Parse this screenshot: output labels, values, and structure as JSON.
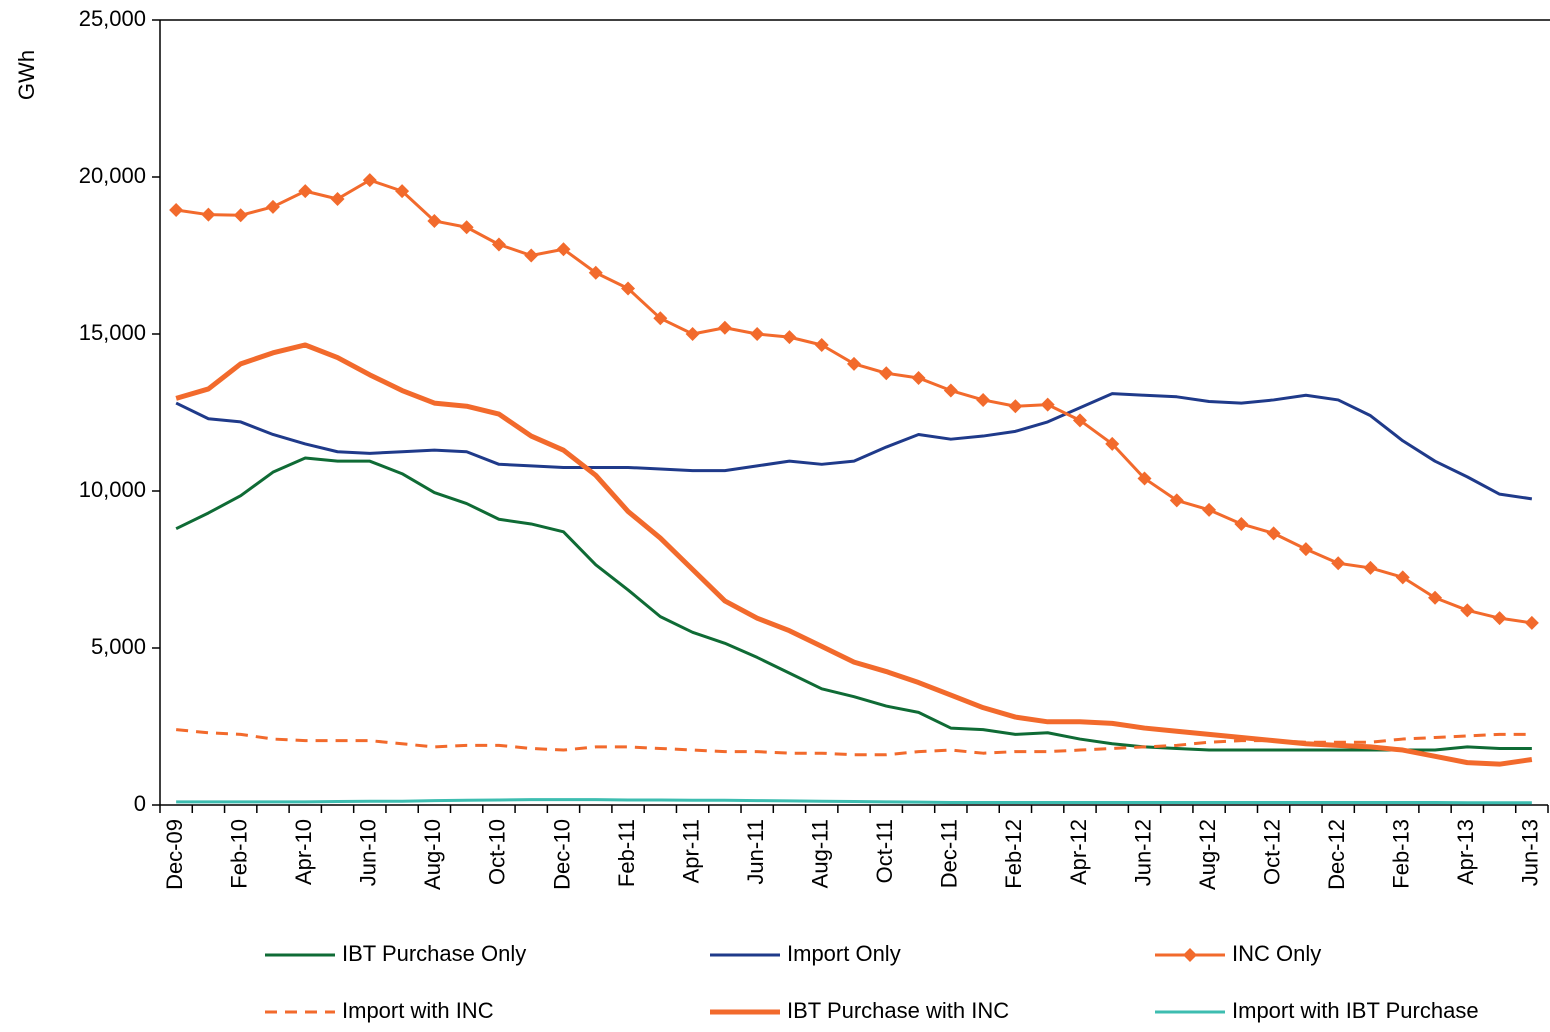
{
  "chart_data": {
    "type": "line",
    "y_label": "GWh",
    "categories": [
      "Dec-09",
      null,
      "Feb-10",
      null,
      "Apr-10",
      null,
      "Jun-10",
      null,
      "Aug-10",
      null,
      "Oct-10",
      null,
      "Dec-10",
      null,
      "Feb-11",
      null,
      "Apr-11",
      null,
      "Jun-11",
      null,
      "Aug-11",
      null,
      "Oct-11",
      null,
      "Dec-11",
      null,
      "Feb-12",
      null,
      "Apr-12",
      null,
      "Jun-12",
      null,
      "Aug-12",
      null,
      "Oct-12",
      null,
      "Dec-12",
      null,
      "Feb-13",
      null,
      "Apr-13",
      null,
      "Jun-13"
    ],
    "ylim": [
      0,
      25000
    ],
    "yticks": [
      0,
      {
        "value": 5000,
        "label": "5,000"
      },
      {
        "value": 10000,
        "label": "10,000"
      },
      {
        "value": 15000,
        "label": "15,000"
      },
      {
        "value": 20000,
        "label": "20,000"
      },
      {
        "value": 25000,
        "label": "25,000"
      }
    ],
    "series": [
      {
        "name": "IBT Purchase Only",
        "color": "#0f6b35",
        "line_width": 3,
        "values": [
          8800,
          9300,
          9850,
          10600,
          11050,
          10950,
          10950,
          10550,
          9950,
          9600,
          9100,
          8950,
          8700,
          7650,
          6850,
          6000,
          5500,
          5150,
          4700,
          4200,
          3700,
          3450,
          3150,
          2950,
          2450,
          2400,
          2250,
          2300,
          2100,
          1950,
          1850,
          1800,
          1750,
          1750,
          1750,
          1750,
          1750,
          1750,
          1750,
          1750,
          1850,
          1800,
          1800
        ]
      },
      {
        "name": "Import Only",
        "color": "#1f3a8a",
        "line_width": 3,
        "values": [
          12800,
          12300,
          12200,
          11800,
          11500,
          11250,
          11200,
          11250,
          11300,
          11250,
          10850,
          10800,
          10750,
          10750,
          10750,
          10700,
          10650,
          10650,
          10800,
          10950,
          10850,
          10950,
          11400,
          11800,
          11650,
          11750,
          11900,
          12200,
          12650,
          13100,
          13050,
          13000,
          12850,
          12800,
          12900,
          13050,
          12900,
          12400,
          11600,
          10950,
          10450,
          9900,
          9750
        ]
      },
      {
        "name": "INC Only",
        "color": "#f26a2c",
        "line_width": 3,
        "marker": "diamond",
        "values": [
          18950,
          18800,
          18780,
          19050,
          19550,
          19300,
          19900,
          19550,
          18600,
          18400,
          17850,
          17500,
          17700,
          16950,
          16450,
          15500,
          15000,
          15200,
          15000,
          14900,
          14650,
          14050,
          13750,
          13600,
          13200,
          12900,
          12700,
          12750,
          12250,
          11500,
          10400,
          9700,
          9400,
          8950,
          8650,
          8150,
          7700,
          7550,
          7250,
          6600,
          6200,
          5950,
          5800
        ]
      },
      {
        "name": "Import with INC",
        "color": "#f26a2c",
        "line_width": 3,
        "dashed": true,
        "values": [
          2400,
          2300,
          2250,
          2100,
          2050,
          2050,
          2050,
          1950,
          1850,
          1900,
          1900,
          1800,
          1750,
          1850,
          1850,
          1800,
          1750,
          1700,
          1700,
          1650,
          1650,
          1600,
          1600,
          1700,
          1750,
          1650,
          1700,
          1700,
          1750,
          1800,
          1850,
          1900,
          2000,
          2050,
          2050,
          2000,
          2000,
          2000,
          2100,
          2150,
          2200,
          2250,
          2250
        ]
      },
      {
        "name": "IBT Purchase with INC",
        "color": "#f26a2c",
        "line_width": 5,
        "values": [
          12950,
          13250,
          14050,
          14400,
          14650,
          14250,
          13700,
          13200,
          12800,
          12700,
          12450,
          11750,
          11300,
          10500,
          9350,
          8500,
          7500,
          6500,
          5950,
          5550,
          5050,
          4550,
          4250,
          3900,
          3500,
          3100,
          2800,
          2650,
          2650,
          2600,
          2450,
          2350,
          2250,
          2150,
          2050,
          1950,
          1900,
          1850,
          1750,
          1550,
          1350,
          1300,
          1450
        ]
      },
      {
        "name": "Import with IBT Purchase",
        "color": "#3dbdb0",
        "line_width": 3,
        "values": [
          100,
          100,
          100,
          100,
          100,
          110,
          120,
          120,
          140,
          150,
          160,
          170,
          170,
          170,
          160,
          160,
          150,
          150,
          140,
          130,
          120,
          110,
          100,
          90,
          80,
          80,
          80,
          80,
          80,
          80,
          80,
          80,
          80,
          80,
          80,
          80,
          80,
          80,
          80,
          80,
          70,
          70,
          70
        ]
      }
    ]
  }
}
